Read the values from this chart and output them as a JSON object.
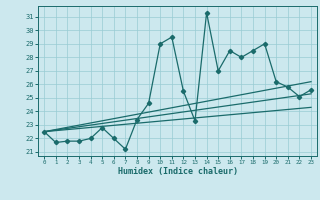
{
  "xlabel": "Humidex (Indice chaleur)",
  "xlim": [
    -0.5,
    23.5
  ],
  "ylim": [
    20.7,
    31.8
  ],
  "yticks": [
    21,
    22,
    23,
    24,
    25,
    26,
    27,
    28,
    29,
    30,
    31
  ],
  "xticks": [
    0,
    1,
    2,
    3,
    4,
    5,
    6,
    7,
    8,
    9,
    10,
    11,
    12,
    13,
    14,
    15,
    16,
    17,
    18,
    19,
    20,
    21,
    22,
    23
  ],
  "bg_color": "#cce8ee",
  "grid_color": "#99ccd4",
  "line_color": "#1a6b6b",
  "series": [
    {
      "x": [
        0,
        1,
        2,
        3,
        4,
        5,
        6,
        7,
        8,
        9,
        10,
        11,
        12,
        13,
        14,
        15,
        16,
        17,
        18,
        19,
        20,
        21,
        22,
        23
      ],
      "y": [
        22.5,
        21.7,
        21.8,
        21.8,
        22.0,
        22.8,
        22.0,
        21.2,
        23.4,
        24.6,
        29.0,
        29.5,
        25.5,
        23.3,
        31.3,
        27.0,
        28.5,
        28.0,
        28.5,
        29.0,
        26.2,
        25.8,
        25.1,
        25.6
      ],
      "marker": "D",
      "markersize": 2.2,
      "linewidth": 0.9
    },
    {
      "x": [
        0,
        23
      ],
      "y": [
        22.5,
        26.2
      ],
      "marker": null,
      "linewidth": 0.9
    },
    {
      "x": [
        0,
        23
      ],
      "y": [
        22.5,
        25.3
      ],
      "marker": null,
      "linewidth": 0.9
    },
    {
      "x": [
        0,
        23
      ],
      "y": [
        22.5,
        24.3
      ],
      "marker": null,
      "linewidth": 0.9
    }
  ]
}
